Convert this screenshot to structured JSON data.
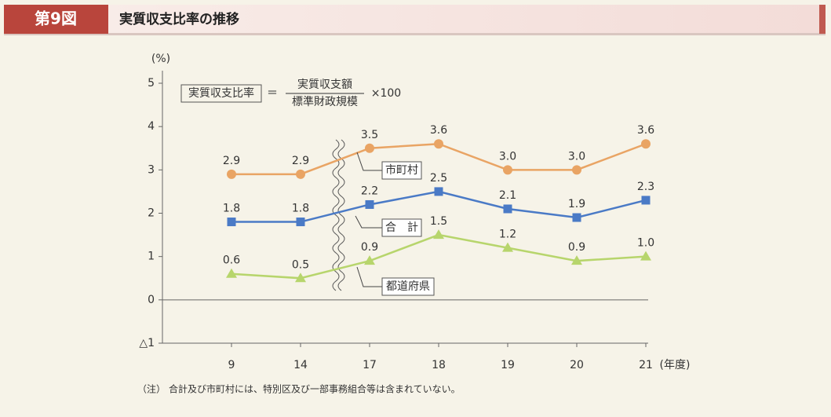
{
  "header": {
    "badge": "第9図",
    "title": "実質収支比率の推移"
  },
  "chart_data": {
    "type": "line",
    "y_unit": "(%)",
    "x_unit": "(年度)",
    "formula": {
      "left": "実質収支比率",
      "equals": "＝",
      "numerator": "実質収支額",
      "denominator": "標準財政規模",
      "multiplier": "×100"
    },
    "categories": [
      "9",
      "14",
      "17",
      "18",
      "19",
      "20",
      "21"
    ],
    "series": [
      {
        "name": "市町村",
        "color": "#e9a464",
        "marker": "circle",
        "values": [
          2.9,
          2.9,
          3.5,
          3.6,
          3.0,
          3.0,
          3.6
        ],
        "value_labels": [
          "2.9",
          "2.9",
          "3.5",
          "3.6",
          "3.0",
          "3.0",
          "3.6"
        ]
      },
      {
        "name": "合　計",
        "color": "#4a7ac6",
        "marker": "square",
        "values": [
          1.8,
          1.8,
          2.2,
          2.5,
          2.1,
          1.9,
          2.3
        ],
        "value_labels": [
          "1.8",
          "1.8",
          "2.2",
          "2.5",
          "2.1",
          "1.9",
          "2.3"
        ]
      },
      {
        "name": "都道府県",
        "color": "#b7d56c",
        "marker": "triangle",
        "values": [
          0.6,
          0.5,
          0.9,
          1.5,
          1.2,
          0.9,
          1.0
        ],
        "value_labels": [
          "0.6",
          "0.5",
          "0.9",
          "1.5",
          "1.2",
          "0.9",
          "1.0"
        ]
      }
    ],
    "ylim": [
      -1,
      5
    ],
    "yticks": [
      {
        "value": -1,
        "label": "△1"
      },
      0,
      1,
      2,
      3,
      4,
      5
    ],
    "grid": false,
    "note_label": "（注）",
    "note": "合計及び市町村には、特別区及び一部事務組合等は含まれていない。"
  }
}
